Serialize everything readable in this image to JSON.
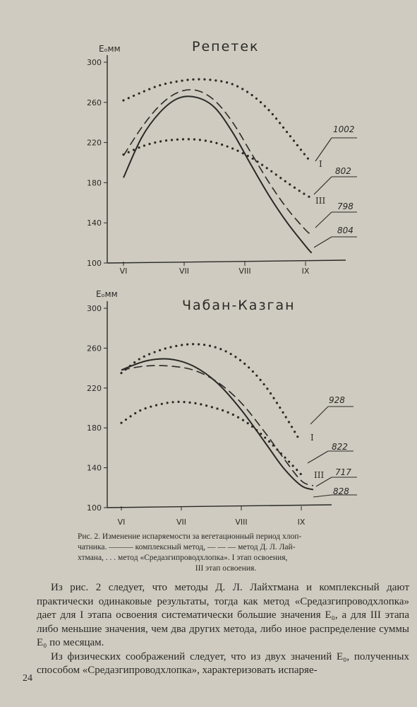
{
  "chart_data": [
    {
      "type": "line",
      "title": "Репетек",
      "ylabel": "Eₒмм",
      "categories": [
        "VI",
        "VII",
        "VIII",
        "IX"
      ],
      "yticks": [
        100,
        140,
        180,
        220,
        260,
        300
      ],
      "ylim": [
        100,
        300
      ],
      "series": [
        {
          "style": "solid",
          "x": [
            0.0,
            0.3,
            0.6,
            0.9,
            1.2,
            1.5,
            1.8,
            2.1,
            2.4,
            2.7,
            3.0,
            3.1
          ],
          "values": [
            185,
            225,
            250,
            264,
            265,
            255,
            230,
            198,
            167,
            140,
            117,
            110
          ]
        },
        {
          "style": "dashed",
          "x": [
            0.0,
            0.3,
            0.6,
            0.9,
            1.2,
            1.5,
            1.8,
            2.1,
            2.4,
            2.7,
            3.0,
            3.1
          ],
          "values": [
            207,
            235,
            257,
            270,
            272,
            262,
            240,
            210,
            180,
            154,
            133,
            128
          ]
        },
        {
          "style": "dotted",
          "name": "I",
          "endlabel": "1002",
          "x": [
            0.0,
            0.3,
            0.6,
            0.9,
            1.2,
            1.5,
            1.8,
            2.1,
            2.4,
            2.7,
            3.0,
            3.1
          ],
          "values": [
            262,
            270,
            277,
            281,
            283,
            282,
            278,
            268,
            252,
            230,
            207,
            200
          ]
        },
        {
          "style": "dotted",
          "name": "III",
          "endlabel": "802",
          "x": [
            0.0,
            0.3,
            0.6,
            0.9,
            1.2,
            1.5,
            1.8,
            2.1,
            2.4,
            2.7,
            3.0,
            3.1
          ],
          "values": [
            208,
            216,
            221,
            223,
            223,
            220,
            214,
            205,
            193,
            180,
            168,
            165
          ]
        }
      ],
      "extra_endlabels": [
        "798",
        "804"
      ]
    },
    {
      "type": "line",
      "title": "Чабан-Казган",
      "ylabel": "Eₒмм",
      "categories": [
        "VI",
        "VII",
        "VIII",
        "IX"
      ],
      "yticks": [
        100,
        140,
        180,
        220,
        260,
        300
      ],
      "ylim": [
        100,
        300
      ],
      "series": [
        {
          "style": "solid",
          "x": [
            0.0,
            0.4,
            0.8,
            1.2,
            1.6,
            2.0,
            2.4,
            2.7,
            3.0,
            3.2
          ],
          "values": [
            238,
            247,
            249,
            242,
            225,
            198,
            165,
            140,
            122,
            118
          ]
        },
        {
          "style": "dashed",
          "x": [
            0.0,
            0.4,
            0.8,
            1.2,
            1.6,
            2.0,
            2.4,
            2.7,
            3.0,
            3.2
          ],
          "values": [
            238,
            242,
            242,
            238,
            226,
            205,
            175,
            150,
            127,
            122
          ]
        },
        {
          "style": "dotted",
          "name": "I",
          "endlabel": "928",
          "x": [
            0.0,
            0.3,
            0.6,
            0.9,
            1.2,
            1.5,
            1.8,
            2.1,
            2.4,
            2.7,
            2.95
          ],
          "values": [
            235,
            249,
            257,
            262,
            264,
            262,
            255,
            242,
            222,
            195,
            170
          ]
        },
        {
          "style": "dotted",
          "name": "III",
          "endlabel": "822",
          "x": [
            0.0,
            0.3,
            0.6,
            0.9,
            1.2,
            1.5,
            1.8,
            2.1,
            2.4,
            2.7,
            3.05
          ],
          "values": [
            185,
            197,
            203,
            206,
            205,
            201,
            195,
            185,
            170,
            152,
            130
          ]
        }
      ],
      "extra_endlabels": [
        "717",
        "828"
      ]
    }
  ],
  "caption": {
    "line1": "Рис. 2. Изменение испаряемости за вегетационный период хлоп-",
    "line2": "чатника. ——— комплексный метод, — — — метод Д. Л. Лай-",
    "line3": "хтмана, . . . метод «Средазгипроводхлопка». I этап освоения,",
    "line4": "III этап освоения."
  },
  "body": {
    "p1": "Из рис. 2 следует, что методы Д. Л. Лайхтмана и комплексный дают практически одинаковые результаты, тогда как метод «Средазгипроводхлопка» дает для I этапа освоения систематически большие значения E₀, а для III этапа либо меньшие значения, чем два других метода, либо иное распределение суммы E₀ по месяцам.",
    "p2": "Из физических соображений следует, что из двух значений E₀, полученных способом «Средазгипроводхлопка», характеризовать испаряе-"
  },
  "page_number": "24"
}
